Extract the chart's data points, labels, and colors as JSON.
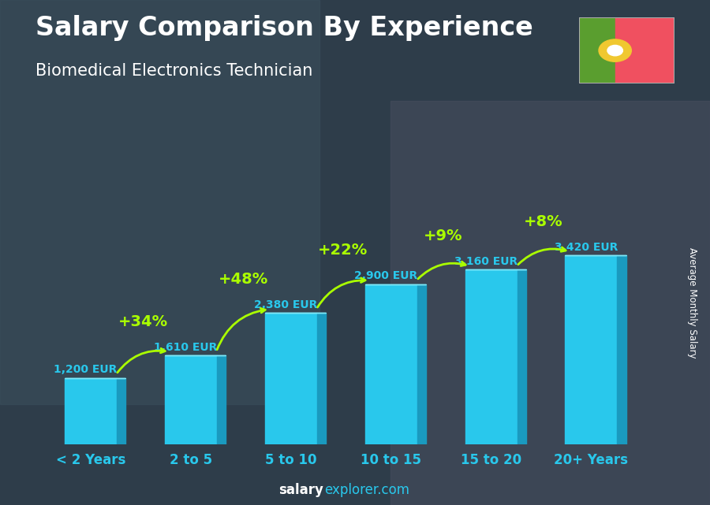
{
  "title": "Salary Comparison By Experience",
  "subtitle": "Biomedical Electronics Technician",
  "ylabel": "Average Monthly Salary",
  "xlabel_labels": [
    "< 2 Years",
    "2 to 5",
    "5 to 10",
    "10 to 15",
    "15 to 20",
    "20+ Years"
  ],
  "values": [
    1200,
    1610,
    2380,
    2900,
    3160,
    3420
  ],
  "value_labels": [
    "1,200 EUR",
    "1,610 EUR",
    "2,380 EUR",
    "2,900 EUR",
    "3,160 EUR",
    "3,420 EUR"
  ],
  "pct_labels": [
    "+34%",
    "+48%",
    "+22%",
    "+9%",
    "+8%"
  ],
  "bar_face_color": "#29c8ec",
  "bar_top_color": "#80e8f8",
  "bar_side_color": "#1a9abf",
  "bar_left_color": "#50d0f0",
  "bg_color": "#3a4a5a",
  "title_color": "#ffffff",
  "subtitle_color": "#ffffff",
  "value_label_color": "#29c8ec",
  "xlabel_color": "#29c8ec",
  "pct_color": "#aaff00",
  "arrow_color": "#aaff00",
  "watermark_salary_color": "#ffffff",
  "watermark_explorer_color": "#29c8ec",
  "ylabel_color": "#ffffff",
  "flag_green": "#5a9e2f",
  "flag_red": "#f05060",
  "flag_yellow": "#f0c830",
  "watermark_bold": "salary",
  "watermark_normal": "explorer.com"
}
